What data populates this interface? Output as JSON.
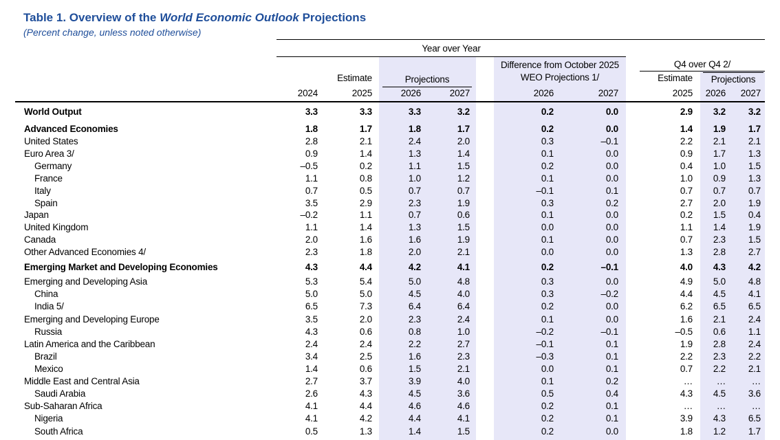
{
  "header": {
    "title": [
      "Table 1. Overview of the ",
      "World Economic Outlook",
      " Projections"
    ],
    "subtitle": "(Percent change, unless noted otherwise)"
  },
  "columns": {
    "year_over_year": "Year over Year",
    "estimate": "Estimate",
    "projections": "Projections",
    "years": [
      "2024",
      "2025",
      "2026",
      "2027"
    ],
    "difference": [
      "Difference from October 2025",
      "WEO Projections 1/"
    ],
    "diff_years": [
      "2026",
      "2027"
    ],
    "q4": "Q4 over Q4 2/",
    "q4_estimate": "Estimate",
    "q4_projections": "Projections",
    "q4_years": [
      "2025",
      "2026",
      "2027"
    ]
  },
  "rows": [
    {
      "label": "World Output",
      "bold": true,
      "indent": false,
      "values": [
        "3.3",
        "3.3",
        "3.3",
        "3.2",
        "0.2",
        "0.0",
        "2.9",
        "3.2",
        "3.2"
      ]
    },
    {
      "label": "Advanced Economies",
      "bold": true,
      "indent": false,
      "values": [
        "1.8",
        "1.7",
        "1.8",
        "1.7",
        "0.2",
        "0.0",
        "1.4",
        "1.9",
        "1.7"
      ]
    },
    {
      "label": "United States",
      "bold": false,
      "indent": false,
      "values": [
        "2.8",
        "2.1",
        "2.4",
        "2.0",
        "0.3",
        "–0.1",
        "2.2",
        "2.1",
        "2.1"
      ]
    },
    {
      "label": "Euro Area 3/",
      "bold": false,
      "indent": false,
      "values": [
        "0.9",
        "1.4",
        "1.3",
        "1.4",
        "0.1",
        "0.0",
        "0.9",
        "1.7",
        "1.3"
      ]
    },
    {
      "label": "Germany",
      "bold": false,
      "indent": true,
      "values": [
        "–0.5",
        "0.2",
        "1.1",
        "1.5",
        "0.2",
        "0.0",
        "0.4",
        "1.0",
        "1.5"
      ]
    },
    {
      "label": "France",
      "bold": false,
      "indent": true,
      "values": [
        "1.1",
        "0.8",
        "1.0",
        "1.2",
        "0.1",
        "0.0",
        "1.0",
        "0.9",
        "1.3"
      ]
    },
    {
      "label": "Italy",
      "bold": false,
      "indent": true,
      "values": [
        "0.7",
        "0.5",
        "0.7",
        "0.7",
        "–0.1",
        "0.1",
        "0.7",
        "0.7",
        "0.7"
      ]
    },
    {
      "label": "Spain",
      "bold": false,
      "indent": true,
      "values": [
        "3.5",
        "2.9",
        "2.3",
        "1.9",
        "0.3",
        "0.2",
        "2.7",
        "2.0",
        "1.9"
      ]
    },
    {
      "label": "Japan",
      "bold": false,
      "indent": false,
      "values": [
        "–0.2",
        "1.1",
        "0.7",
        "0.6",
        "0.1",
        "0.0",
        "0.2",
        "1.5",
        "0.4"
      ]
    },
    {
      "label": "United Kingdom",
      "bold": false,
      "indent": false,
      "values": [
        "1.1",
        "1.4",
        "1.3",
        "1.5",
        "0.0",
        "0.0",
        "1.1",
        "1.4",
        "1.9"
      ]
    },
    {
      "label": "Canada",
      "bold": false,
      "indent": false,
      "values": [
        "2.0",
        "1.6",
        "1.6",
        "1.9",
        "0.1",
        "0.0",
        "0.7",
        "2.3",
        "1.5"
      ]
    },
    {
      "label": "Other Advanced Economies 4/",
      "bold": false,
      "indent": false,
      "values": [
        "2.3",
        "1.8",
        "2.0",
        "2.1",
        "0.0",
        "0.0",
        "1.3",
        "2.8",
        "2.7"
      ]
    },
    {
      "label": "Emerging Market and Developing Economies",
      "bold": true,
      "indent": false,
      "values": [
        "4.3",
        "4.4",
        "4.2",
        "4.1",
        "0.2",
        "–0.1",
        "4.0",
        "4.3",
        "4.2"
      ]
    },
    {
      "label": "Emerging and Developing Asia",
      "bold": false,
      "indent": false,
      "values": [
        "5.3",
        "5.4",
        "5.0",
        "4.8",
        "0.3",
        "0.0",
        "4.9",
        "5.0",
        "4.8"
      ]
    },
    {
      "label": "China",
      "bold": false,
      "indent": true,
      "values": [
        "5.0",
        "5.0",
        "4.5",
        "4.0",
        "0.3",
        "–0.2",
        "4.4",
        "4.5",
        "4.1"
      ]
    },
    {
      "label": "India 5/",
      "bold": false,
      "indent": true,
      "values": [
        "6.5",
        "7.3",
        "6.4",
        "6.4",
        "0.2",
        "0.0",
        "6.2",
        "6.5",
        "6.5"
      ]
    },
    {
      "label": "Emerging and Developing Europe",
      "bold": false,
      "indent": false,
      "values": [
        "3.5",
        "2.0",
        "2.3",
        "2.4",
        "0.1",
        "0.0",
        "1.6",
        "2.1",
        "2.4"
      ]
    },
    {
      "label": "Russia",
      "bold": false,
      "indent": true,
      "values": [
        "4.3",
        "0.6",
        "0.8",
        "1.0",
        "–0.2",
        "–0.1",
        "–0.5",
        "0.6",
        "1.1"
      ]
    },
    {
      "label": "Latin America and the Caribbean",
      "bold": false,
      "indent": false,
      "values": [
        "2.4",
        "2.4",
        "2.2",
        "2.7",
        "–0.1",
        "0.1",
        "1.9",
        "2.8",
        "2.4"
      ]
    },
    {
      "label": "Brazil",
      "bold": false,
      "indent": true,
      "values": [
        "3.4",
        "2.5",
        "1.6",
        "2.3",
        "–0.3",
        "0.1",
        "2.2",
        "2.3",
        "2.2"
      ]
    },
    {
      "label": "Mexico",
      "bold": false,
      "indent": true,
      "values": [
        "1.4",
        "0.6",
        "1.5",
        "2.1",
        "0.0",
        "0.1",
        "0.7",
        "2.2",
        "2.1"
      ]
    },
    {
      "label": "Middle East and Central Asia",
      "bold": false,
      "indent": false,
      "values": [
        "2.7",
        "3.7",
        "3.9",
        "4.0",
        "0.1",
        "0.2",
        "…",
        "…",
        "…"
      ]
    },
    {
      "label": "Saudi Arabia",
      "bold": false,
      "indent": true,
      "values": [
        "2.6",
        "4.3",
        "4.5",
        "3.6",
        "0.5",
        "0.4",
        "4.3",
        "4.5",
        "3.6"
      ]
    },
    {
      "label": "Sub-Saharan Africa",
      "bold": false,
      "indent": false,
      "values": [
        "4.1",
        "4.4",
        "4.6",
        "4.6",
        "0.2",
        "0.1",
        "…",
        "…",
        "…"
      ]
    },
    {
      "label": "Nigeria",
      "bold": false,
      "indent": true,
      "values": [
        "4.1",
        "4.2",
        "4.4",
        "4.1",
        "0.2",
        "0.1",
        "3.9",
        "4.3",
        "6.5"
      ]
    },
    {
      "label": "South Africa",
      "bold": false,
      "indent": true,
      "values": [
        "0.5",
        "1.3",
        "1.4",
        "1.5",
        "0.2",
        "0.0",
        "1.8",
        "1.2",
        "1.7"
      ]
    }
  ]
}
